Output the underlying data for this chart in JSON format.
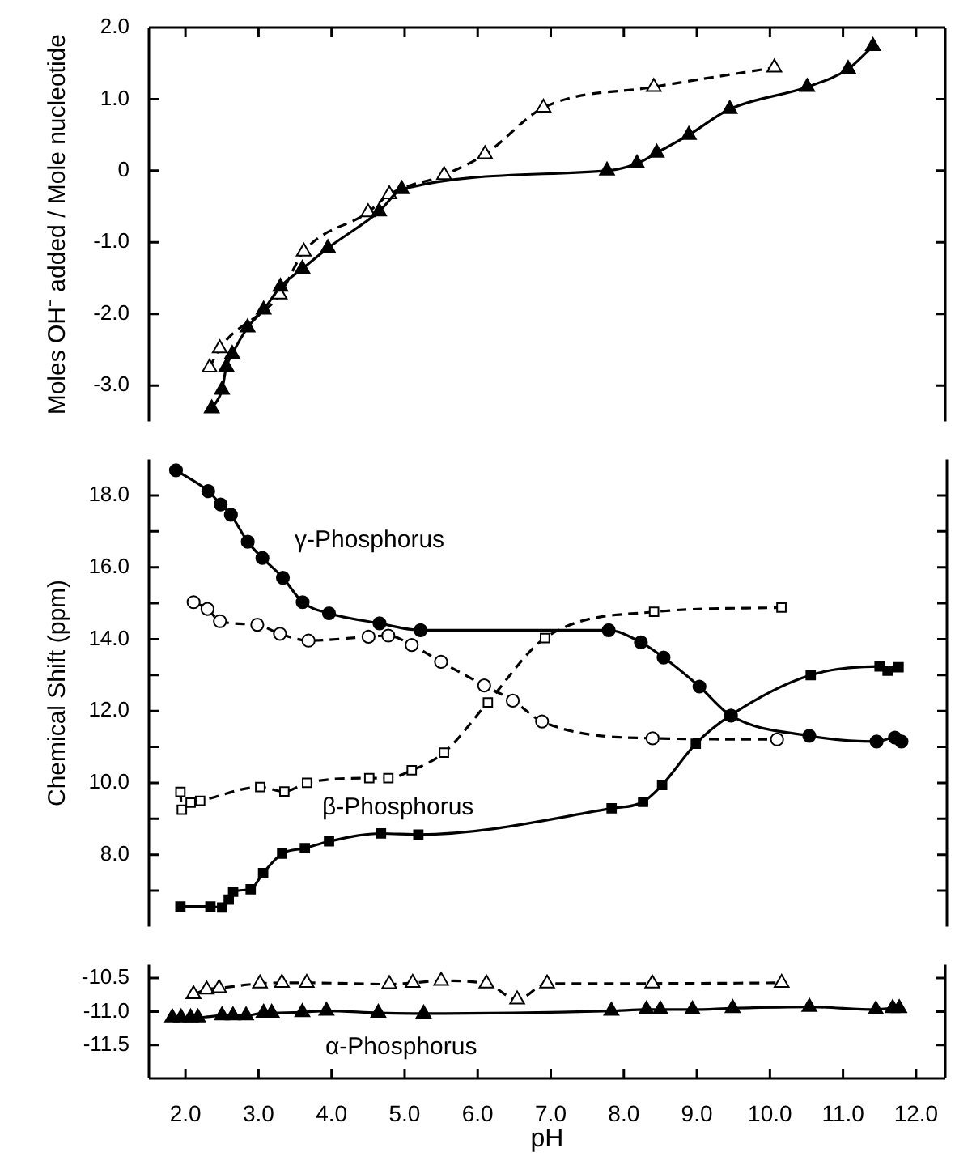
{
  "chart_data": [
    {
      "type": "line",
      "ylabel": "Moles OH⁻ added / Mole nucleotide",
      "tick_labels": "y",
      "grid": false,
      "xlim": [
        1.5,
        12.4
      ],
      "xticks": [
        {
          "value": 2,
          "label": null
        },
        {
          "value": 3,
          "label": null
        },
        {
          "value": 4,
          "label": null
        },
        {
          "value": 5,
          "label": null
        },
        {
          "value": 6,
          "label": null
        },
        {
          "value": 7,
          "label": null
        },
        {
          "value": 8,
          "label": null
        },
        {
          "value": 9,
          "label": null
        },
        {
          "value": 10,
          "label": null
        },
        {
          "value": 11,
          "label": null
        },
        {
          "value": 12,
          "label": null
        }
      ],
      "ylim": [
        -3.5,
        2.0
      ],
      "yticks": [
        {
          "value": 2,
          "label": "2.0"
        },
        {
          "value": 1,
          "label": "1.0"
        },
        0,
        {
          "value": -1,
          "label": "-1.0"
        },
        {
          "value": -2,
          "label": "-2.0"
        },
        {
          "value": -3,
          "label": "-3.0"
        }
      ],
      "series": [
        {
          "color": "#000000",
          "marker": "triangle",
          "line_style": "solid",
          "x": [
            2.36,
            2.5,
            2.56,
            2.64,
            2.85,
            3.07,
            3.3,
            3.6,
            3.95,
            4.65,
            4.96,
            7.77,
            8.18,
            8.45,
            8.89,
            9.45,
            10.51,
            11.07,
            11.41
          ],
          "values": [
            -3.32,
            -3.06,
            -2.74,
            -2.56,
            -2.19,
            -1.94,
            -1.62,
            -1.37,
            -1.08,
            -0.57,
            -0.26,
            0.0,
            0.1,
            0.25,
            0.5,
            0.86,
            1.17,
            1.42,
            1.74
          ]
        },
        {
          "color": "#000000",
          "marker": "triangle",
          "line_style": "dashed",
          "x": [
            2.33,
            2.47,
            3.29,
            3.62,
            4.5,
            4.79,
            5.54,
            6.1,
            6.9,
            8.41,
            10.06
          ],
          "values": [
            -2.75,
            -2.48,
            -1.73,
            -1.13,
            -0.58,
            -0.33,
            -0.06,
            0.23,
            0.88,
            1.17,
            1.44
          ]
        }
      ]
    },
    {
      "type": "line",
      "ylabel": "Chemical Shift (ppm)",
      "tick_labels": "y",
      "grid": false,
      "xlim": [
        1.5,
        12.4
      ],
      "ylim": [
        6.0,
        19.0
      ],
      "yticks": [
        {
          "value": 18,
          "label": "18.0"
        },
        {
          "value": 17,
          "label": null
        },
        {
          "value": 16,
          "label": "16.0"
        },
        {
          "value": 15,
          "label": null
        },
        {
          "value": 14,
          "label": "14.0"
        },
        {
          "value": 13,
          "label": null
        },
        {
          "value": 12,
          "label": "12.0"
        },
        {
          "value": 11,
          "label": null
        },
        {
          "value": 10,
          "label": "10.0"
        },
        {
          "value": 9,
          "label": null
        },
        {
          "value": 8,
          "label": "8.0"
        },
        {
          "value": 7,
          "label": null
        }
      ],
      "annotations": [
        "γ-Phosphorus",
        "β-Phosphorus"
      ],
      "series": [
        {
          "color": "#000000",
          "marker": "circle",
          "line_style": "solid",
          "x": [
            1.87,
            2.31,
            2.48,
            2.62,
            2.85,
            3.05,
            3.33,
            3.6,
            3.96,
            4.65,
            5.21,
            7.78,
            8.22,
            8.53,
            9.02,
            9.45,
            10.52,
            11.44,
            11.69,
            11.78
          ],
          "values": [
            18.7,
            18.12,
            17.75,
            17.46,
            16.71,
            16.26,
            15.71,
            15.03,
            14.72,
            14.44,
            14.25,
            14.25,
            13.91,
            13.49,
            12.68,
            11.87,
            11.31,
            11.15,
            11.26,
            11.15
          ]
        },
        {
          "color": "#000000",
          "marker": "circle",
          "line_style": "dashed",
          "x": [
            2.11,
            2.3,
            2.47,
            2.98,
            3.29,
            3.68,
            4.5,
            4.77,
            5.09,
            5.49,
            6.08,
            6.47,
            6.87,
            8.38,
            10.08
          ],
          "values": [
            15.03,
            14.84,
            14.5,
            14.4,
            14.15,
            13.96,
            14.07,
            14.1,
            13.84,
            13.37,
            12.71,
            12.29,
            11.71,
            11.24,
            11.21
          ]
        },
        {
          "color": "#000000",
          "marker": "square",
          "line_style": "dashed",
          "x": [
            1.93,
            1.95,
            2.07,
            2.2,
            3.02,
            3.35,
            3.66,
            4.51,
            4.77,
            5.09,
            5.53,
            6.13,
            6.91,
            8.4,
            10.14
          ],
          "values": [
            9.75,
            9.25,
            9.45,
            9.5,
            9.88,
            9.76,
            10.0,
            10.13,
            10.13,
            10.35,
            10.84,
            12.24,
            14.03,
            14.76,
            14.88
          ]
        },
        {
          "color": "#000000",
          "marker": "square",
          "line_style": "solid",
          "x": [
            1.93,
            2.34,
            2.5,
            2.59,
            2.65,
            2.89,
            3.06,
            3.32,
            3.63,
            3.96,
            4.67,
            5.18,
            7.82,
            8.25,
            8.51,
            8.97,
            9.44,
            10.54,
            11.48,
            11.59,
            11.74
          ],
          "values": [
            6.56,
            6.56,
            6.53,
            6.75,
            6.97,
            7.04,
            7.49,
            8.03,
            8.18,
            8.37,
            8.59,
            8.56,
            9.29,
            9.47,
            9.94,
            11.09,
            11.87,
            13.0,
            13.24,
            13.12,
            13.22
          ]
        }
      ]
    },
    {
      "type": "line",
      "xlabel": "pH",
      "grid": false,
      "xlim": [
        1.5,
        12.4
      ],
      "xticks": [
        {
          "value": 2,
          "label": "2.0"
        },
        {
          "value": 3,
          "label": "3.0"
        },
        {
          "value": 4,
          "label": "4.0"
        },
        {
          "value": 5,
          "label": "5.0"
        },
        {
          "value": 6,
          "label": "6.0"
        },
        {
          "value": 7,
          "label": "7.0"
        },
        {
          "value": 8,
          "label": "8.0"
        },
        {
          "value": 9,
          "label": "9.0"
        },
        {
          "value": 10,
          "label": "10.0"
        },
        {
          "value": 11,
          "label": "11.0"
        },
        {
          "value": 12,
          "label": "12.0"
        }
      ],
      "ylim": [
        -12.0,
        -10.3
      ],
      "yticks": [
        -10.5,
        {
          "value": -11,
          "label": "-11.0"
        },
        -11.5
      ],
      "annotations": [
        "α-Phosphorus"
      ],
      "series": [
        {
          "color": "#000000",
          "marker": "triangle",
          "line_style": "solid",
          "x": [
            1.82,
            1.94,
            2.07,
            2.17,
            2.5,
            2.65,
            2.83,
            3.07,
            3.18,
            3.6,
            3.93,
            4.64,
            5.26,
            7.83,
            8.31,
            8.5,
            8.94,
            9.49,
            10.54,
            11.45,
            11.68,
            11.77
          ],
          "values": [
            -11.09,
            -11.09,
            -11.09,
            -11.09,
            -11.06,
            -11.06,
            -11.06,
            -11.02,
            -11.02,
            -11.01,
            -10.99,
            -11.02,
            -11.03,
            -10.99,
            -10.97,
            -10.97,
            -10.97,
            -10.95,
            -10.93,
            -10.97,
            -10.95,
            -10.95
          ]
        },
        {
          "color": "#000000",
          "marker": "triangle",
          "line_style": "dashed",
          "x": [
            2.11,
            2.29,
            2.46,
            3.02,
            3.32,
            3.66,
            4.79,
            5.11,
            5.5,
            6.12,
            6.54,
            6.95,
            8.39,
            10.16
          ],
          "values": [
            -10.74,
            -10.67,
            -10.65,
            -10.58,
            -10.57,
            -10.57,
            -10.59,
            -10.57,
            -10.54,
            -10.58,
            -10.82,
            -10.58,
            -10.58,
            -10.57
          ]
        }
      ]
    }
  ]
}
